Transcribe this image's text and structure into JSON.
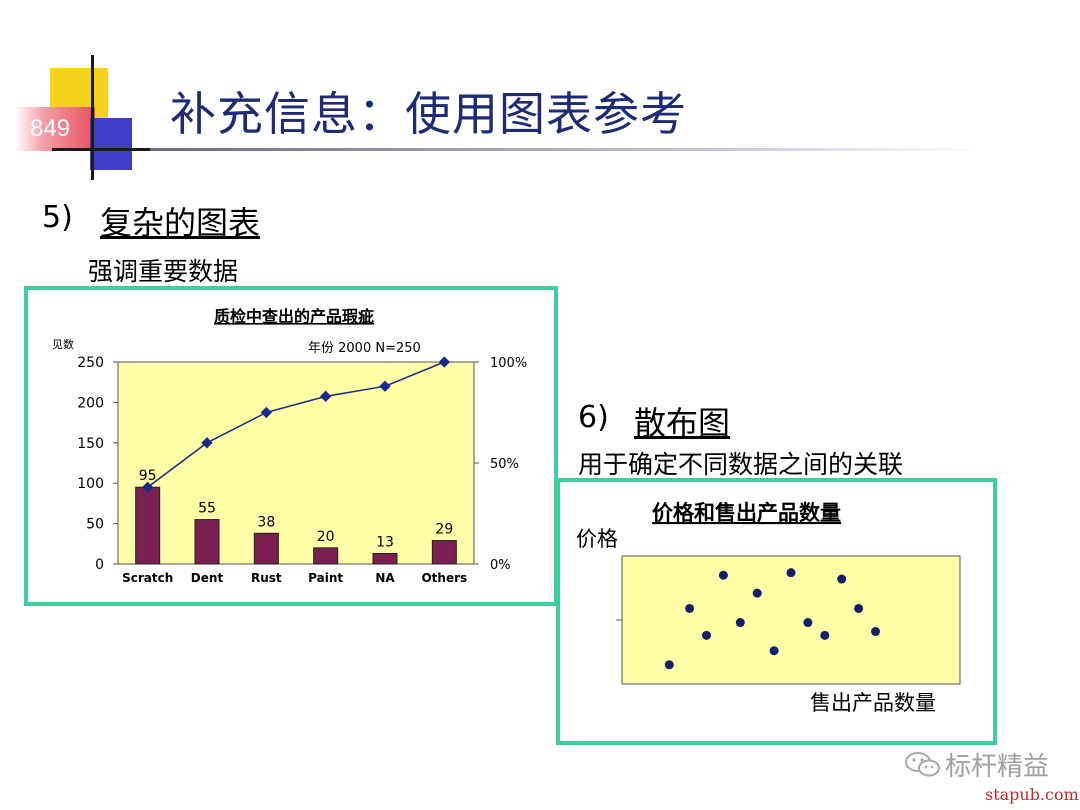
{
  "slide": {
    "number": "849",
    "title": "补充信息：使用图表参考"
  },
  "section5": {
    "number": "5)",
    "title": "复杂的图表",
    "desc": "强调重要数据"
  },
  "section6": {
    "number": "6)",
    "title": "散布图",
    "desc": "用于确定不同数据之间的关联"
  },
  "chart_data": [
    {
      "type": "bar",
      "title": "质检中查出的产品瑕疵",
      "subtitle": "年份 2000  N=250",
      "ylabel": "见数",
      "categories": [
        "Scratch",
        "Dent",
        "Rust",
        "Paint",
        "NA",
        "Others"
      ],
      "values": [
        95,
        55,
        38,
        20,
        13,
        29
      ],
      "ylim": [
        0,
        250
      ],
      "yticks": [
        "0",
        "50",
        "100",
        "150",
        "200",
        "250"
      ],
      "y2ticks": [
        "0%",
        "50%",
        "100%"
      ],
      "y2lim": [
        0,
        100
      ],
      "cumulative_percent": [
        38,
        60,
        75,
        83,
        88,
        100
      ],
      "bar_color": "#7b1f52",
      "line_color": "#1a2a8c",
      "plot_bg": "#ffffa8"
    },
    {
      "type": "scatter",
      "title": "价格和售出产品数量",
      "ylabel": "价格",
      "xlabel": "售出产品数量",
      "xlim": [
        0,
        100
      ],
      "ylim": [
        0,
        100
      ],
      "points": [
        [
          14,
          15
        ],
        [
          20,
          59
        ],
        [
          25,
          38
        ],
        [
          30,
          85
        ],
        [
          35,
          48
        ],
        [
          40,
          71
        ],
        [
          45,
          26
        ],
        [
          50,
          87
        ],
        [
          55,
          48
        ],
        [
          60,
          38
        ],
        [
          65,
          82
        ],
        [
          70,
          59
        ],
        [
          75,
          41
        ]
      ],
      "point_color": "#10206a",
      "plot_bg": "#ffffa8"
    }
  ],
  "watermark": {
    "text": "标杆精益",
    "icon": "wechat-icon"
  },
  "footer": {
    "url": "stapub.com"
  }
}
